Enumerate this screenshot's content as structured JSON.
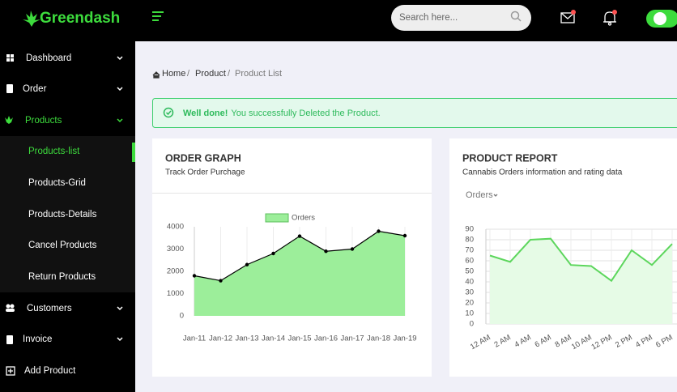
{
  "header": {
    "brand": "Greendash",
    "search_placeholder": "Search here..."
  },
  "sidebar": {
    "items": [
      "Dashboard",
      "Order",
      "Products",
      "Products-list",
      "Products-Grid",
      "Products-Details",
      "Cancel Products",
      "Return Products",
      "Customers",
      "Invoice",
      "Add Product"
    ]
  },
  "breadcrumb": {
    "items": [
      "Home",
      "Product",
      "Product List"
    ],
    "separator": "/"
  },
  "alert": {
    "strong": "Well done!",
    "message": "You successfully Deleted the Product."
  },
  "chart_data": [
    {
      "type": "area",
      "title": "ORDER GRAPH",
      "subtitle": "Track Order Purchage",
      "categories": [
        "Jan-11",
        "Jan-12",
        "Jan-13",
        "Jan-14",
        "Jan-15",
        "Jan-16",
        "Jan-17",
        "Jan-18",
        "Jan-19"
      ],
      "series": [
        {
          "name": "Orders",
          "color": "#000000",
          "fill": "#9cee9a",
          "values": [
            1800,
            1580,
            2300,
            2800,
            3580,
            2900,
            3000,
            3800,
            3600
          ]
        }
      ],
      "ylim": [
        0,
        4000
      ],
      "yticks": [
        0,
        1000,
        2000,
        3000,
        4000
      ],
      "grid": "x",
      "markers": true,
      "legend": "top"
    },
    {
      "type": "area",
      "title": "PRODUCT REPORT",
      "subtitle": "Cannabis Orders information and rating data",
      "categories": [
        "12 AM",
        "2 AM",
        "4 AM",
        "6 AM",
        "8 AM",
        "10 AM",
        "12 PM",
        "2 PM",
        "4 PM",
        "6 PM"
      ],
      "series": [
        {
          "name": "Orders",
          "color": "#5cd65c",
          "fill": "#e6fbe6",
          "values": [
            65,
            59,
            80,
            81,
            56,
            55,
            41,
            70,
            56,
            76
          ]
        }
      ],
      "ylim": [
        0,
        90
      ],
      "yticks": [
        0,
        10,
        20,
        30,
        40,
        50,
        60,
        70,
        80,
        90
      ],
      "grid": "both",
      "markers": false,
      "legend": "none"
    }
  ]
}
